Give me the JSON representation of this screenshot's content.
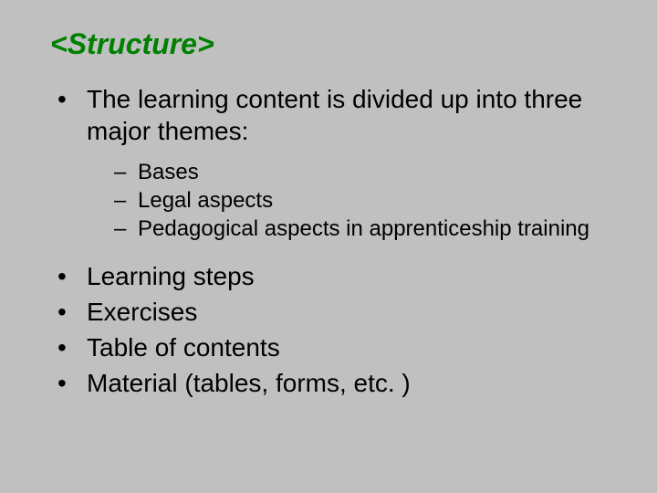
{
  "title": "<Structure>",
  "intro": "The learning content is divided up into three major themes:",
  "sub_items": [
    "Bases",
    "Legal aspects",
    "Pedagogical aspects in apprenticeship training"
  ],
  "main_items": [
    "Learning steps",
    "Exercises",
    "Table of contents",
    "Material (tables, forms, etc. )"
  ],
  "colors": {
    "background": "#c0c0c0",
    "title": "#008000",
    "text": "#000000"
  },
  "typography": {
    "title_fontsize": 32,
    "body_fontsize": 28,
    "sub_fontsize": 24,
    "title_weight": "bold",
    "title_style": "italic",
    "font_family": "Arial"
  }
}
